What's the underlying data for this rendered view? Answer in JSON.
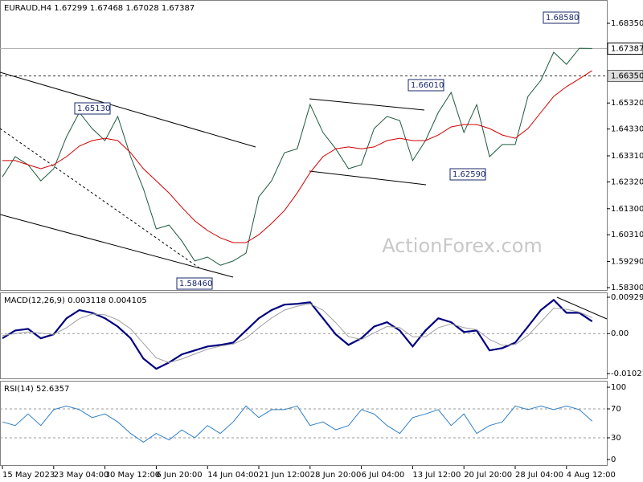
{
  "chart_data": [
    {
      "type": "line",
      "title": "EURAUD,H4  1.67299  1.67468  1.67028  1.67387",
      "ylim": [
        1.58178,
        1.69236
      ],
      "yticks": [
        {
          "value": 1.6835,
          "label": "1.68350"
        },
        {
          "value": 1.6532,
          "label": "1.65320"
        },
        {
          "value": 1.6433,
          "label": "1.64330"
        },
        {
          "value": 1.6331,
          "label": "1.63310"
        },
        {
          "value": 1.6232,
          "label": "1.62320"
        },
        {
          "value": 1.613,
          "label": "1.61300"
        },
        {
          "value": 1.6031,
          "label": "1.60310"
        },
        {
          "value": 1.5929,
          "label": "1.59290"
        },
        {
          "value": 1.583,
          "label": "1.58300"
        }
      ],
      "grid": false,
      "last_price": {
        "value": 1.67387,
        "label": "1.67387"
      },
      "level": {
        "value": 1.6635,
        "label": "1.66350"
      },
      "annotations": [
        "1.65130",
        "1.58460",
        "1.66010",
        "1.62590",
        "1.68580"
      ],
      "watermark": "ActionForex.com",
      "series": [
        {
          "name": "EURAUD",
          "color": "#1d5a3c",
          "values": [
            1.6251,
            1.6328,
            1.6297,
            1.6236,
            1.6282,
            1.6404,
            1.6496,
            1.6435,
            1.6389,
            1.6481,
            1.6328,
            1.6206,
            1.6053,
            1.6068,
            1.6007,
            1.5931,
            1.5946,
            1.5915,
            1.5931,
            1.5961,
            1.6175,
            1.6236,
            1.6343,
            1.6358,
            1.6526,
            1.642,
            1.6358,
            1.6282,
            1.6297,
            1.6435,
            1.6481,
            1.6465,
            1.6313,
            1.6389,
            1.6496,
            1.6572,
            1.642,
            1.6526,
            1.6328,
            1.6374,
            1.6374,
            1.6557,
            1.6618,
            1.6725,
            1.6679,
            1.674,
            1.6739
          ]
        },
        {
          "name": "MA",
          "color": "#d40000",
          "values": [
            1.6313,
            1.6313,
            1.6297,
            1.6282,
            1.6297,
            1.6328,
            1.6368,
            1.6389,
            1.6398,
            1.6389,
            1.6343,
            1.6282,
            1.6236,
            1.619,
            1.6135,
            1.6084,
            1.6047,
            1.6019,
            1.6001,
            1.6001,
            1.6031,
            1.6074,
            1.6123,
            1.619,
            1.6267,
            1.6328,
            1.6358,
            1.6365,
            1.6358,
            1.6365,
            1.6389,
            1.6398,
            1.6389,
            1.6389,
            1.641,
            1.6441,
            1.645,
            1.645,
            1.6435,
            1.641,
            1.6398,
            1.6435,
            1.6496,
            1.6557,
            1.6594,
            1.6624,
            1.6655
          ]
        }
      ]
    },
    {
      "type": "line",
      "title": "MACD(12,26,9) 0.003118 0.004105",
      "ylim": [
        -0.01165,
        0.01052
      ],
      "yticks": [
        0.009291,
        {
          "value": 0,
          "label": "0.00"
        },
        -0.010211
      ],
      "grid": true,
      "series": [
        {
          "name": "MACD",
          "color": "#000080",
          "values": [
            -0.0012,
            0.0008,
            0.0012,
            -0.0012,
            -0.0002,
            0.0039,
            0.006,
            0.0053,
            0.0039,
            0.0018,
            -0.0012,
            -0.0064,
            -0.009,
            -0.0074,
            -0.0053,
            -0.0043,
            -0.0033,
            -0.0029,
            -0.0023,
            0.0008,
            0.0039,
            0.006,
            0.0074,
            0.0076,
            0.008,
            0.0039,
            -0.0002,
            -0.0029,
            -0.0012,
            0.0018,
            0.0029,
            0.0008,
            -0.0033,
            0.0008,
            0.0039,
            0.0029,
            0.0004,
            0.0008,
            -0.0043,
            -0.0037,
            -0.0023,
            0.0018,
            0.006,
            0.0086,
            0.0053,
            0.0053,
            0.0031
          ]
        },
        {
          "name": "Signal",
          "color": "#a0a0a0",
          "values": [
            -0.0005,
            0.0,
            0.0004,
            0.0001,
            -0.0002,
            0.0015,
            0.0038,
            0.005,
            0.0048,
            0.0035,
            0.0012,
            -0.0025,
            -0.0062,
            -0.0074,
            -0.0065,
            -0.0052,
            -0.004,
            -0.0032,
            -0.0027,
            -0.0012,
            0.0015,
            0.004,
            0.006,
            0.007,
            0.0076,
            0.006,
            0.0028,
            -0.0008,
            -0.0015,
            0.0002,
            0.0018,
            0.0015,
            -0.0008,
            -0.0008,
            0.0015,
            0.0025,
            0.0015,
            0.001,
            -0.0015,
            -0.003,
            -0.0028,
            -0.0005,
            0.003,
            0.0065,
            0.0062,
            0.0055,
            0.0041
          ]
        }
      ]
    },
    {
      "type": "line",
      "title": "RSI(14) 52.6357",
      "ylim": [
        -8.9,
        108.9
      ],
      "yticks": [
        100,
        70,
        30,
        0
      ],
      "grid": true,
      "categories": [
        "15 May 2023",
        null,
        null,
        null,
        "23 May 04:00",
        null,
        null,
        null,
        "30 May 12:00",
        null,
        null,
        null,
        "6 Jun 20:00",
        null,
        null,
        null,
        "14 Jun 04:00",
        null,
        null,
        null,
        "21 Jun 12:00",
        null,
        null,
        null,
        "28 Jun 20:00",
        null,
        null,
        null,
        "6 Jul 04:00",
        null,
        null,
        null,
        "13 Jul 12:00",
        null,
        null,
        null,
        "20 Jul 20:00",
        null,
        null,
        null,
        "28 Jul 04:00",
        null,
        null,
        null,
        "4 Aug 12:00",
        null,
        null
      ],
      "series": [
        {
          "name": "RSI",
          "color": "#2f7fc8",
          "values": [
            52,
            47,
            63,
            47,
            69,
            74,
            69,
            58,
            63,
            52,
            36,
            24,
            36,
            27,
            41,
            30,
            47,
            36,
            52,
            74,
            58,
            69,
            69,
            74,
            47,
            52,
            41,
            47,
            69,
            63,
            47,
            36,
            58,
            63,
            69,
            47,
            63,
            36,
            47,
            52,
            74,
            69,
            74,
            69,
            74,
            69,
            53
          ]
        }
      ]
    }
  ]
}
